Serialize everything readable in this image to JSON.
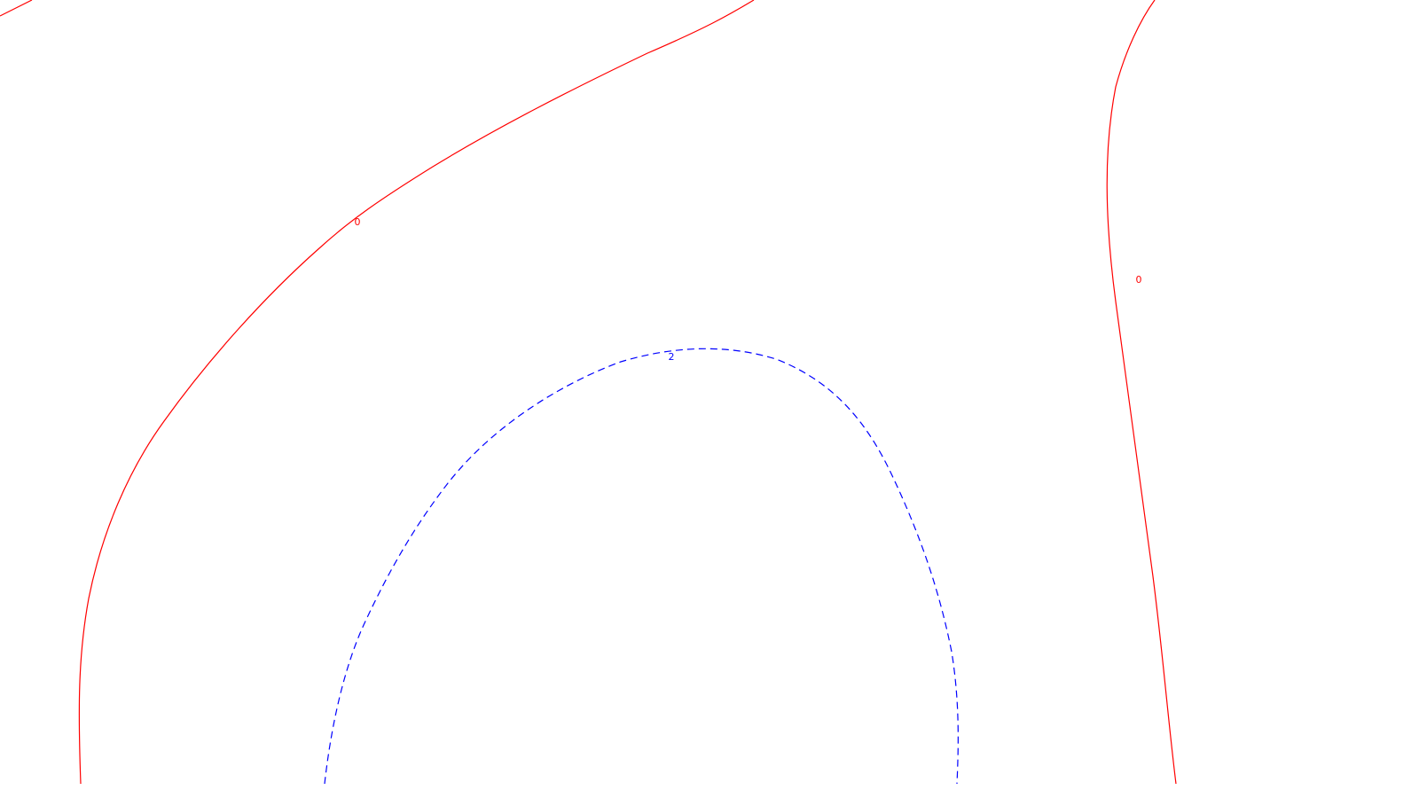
{
  "chart_data": {
    "type": "contour",
    "colors": {
      "level_0": "#ff0000",
      "level_2": "#0000ff"
    },
    "levels": [
      {
        "value": 0,
        "label": "0",
        "line_style": "solid",
        "color": "#ff0000"
      },
      {
        "value": 2,
        "label": "2",
        "line_style": "dashed",
        "color": "#0000ff"
      }
    ],
    "title": "",
    "xlabel": "",
    "ylabel": "",
    "grid": false
  }
}
